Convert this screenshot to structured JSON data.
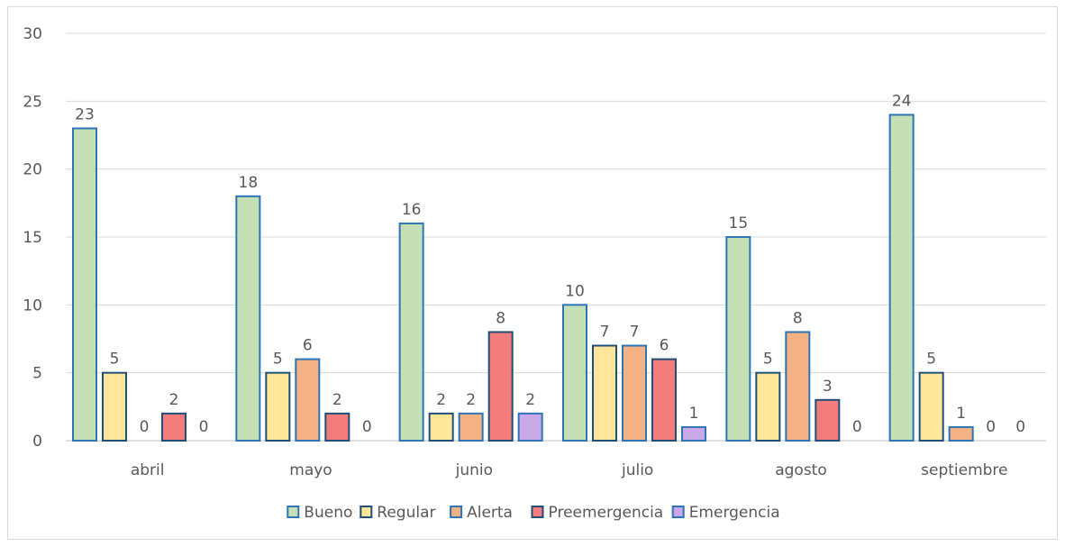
{
  "chart_data": {
    "type": "bar",
    "title": "",
    "xlabel": "",
    "ylabel": "",
    "ylim": [
      0,
      30
    ],
    "yticks": [
      0,
      5,
      10,
      15,
      20,
      25,
      30
    ],
    "grid": true,
    "legend_position": "bottom",
    "categories": [
      "abril",
      "mayo",
      "junio",
      "julio",
      "agosto",
      "septiembre"
    ],
    "series": [
      {
        "name": "Bueno",
        "values": [
          23,
          18,
          16,
          10,
          15,
          24
        ],
        "fill": "#c5e0b4",
        "stroke": "#2e75b6"
      },
      {
        "name": "Regular",
        "values": [
          5,
          5,
          2,
          7,
          5,
          5
        ],
        "fill": "#ffe699",
        "stroke": "#1f4e79"
      },
      {
        "name": "Alerta",
        "values": [
          0,
          6,
          2,
          7,
          8,
          1
        ],
        "fill": "#f4b183",
        "stroke": "#2e75b6"
      },
      {
        "name": "Preemergencia",
        "values": [
          2,
          2,
          8,
          6,
          3,
          0
        ],
        "fill": "#f47c7c",
        "stroke": "#1f4e79"
      },
      {
        "name": "Emergencia",
        "values": [
          0,
          0,
          2,
          1,
          0,
          0
        ],
        "fill": "#c9a7e8",
        "stroke": "#2e75b6"
      }
    ]
  }
}
